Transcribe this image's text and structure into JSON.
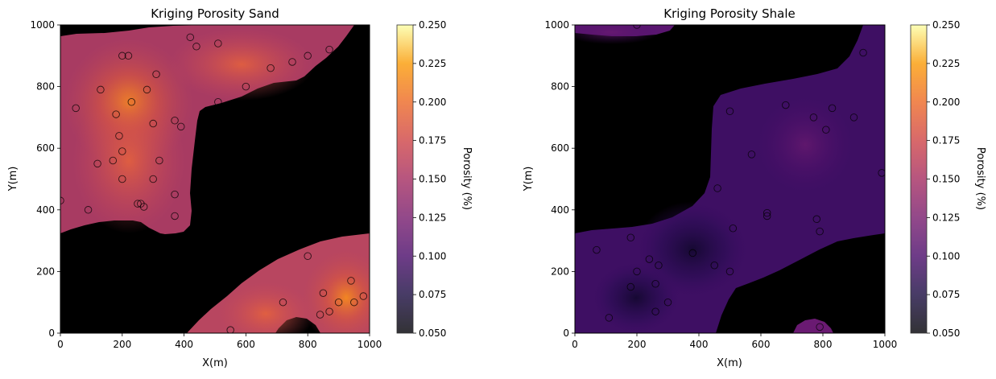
{
  "chart_data": [
    {
      "type": "heatmap",
      "title": "Kriging Porosity Sand",
      "xlabel": "X(m)",
      "ylabel": "Y(m)",
      "xlim": [
        0,
        1000
      ],
      "ylim": [
        0,
        1000
      ],
      "xticks": [
        "0",
        "200",
        "400",
        "600",
        "800",
        "1000"
      ],
      "yticks": [
        "0",
        "200",
        "400",
        "600",
        "800",
        "1000"
      ],
      "colorbar": {
        "label": "Porosity (%)",
        "range": [
          0.05,
          0.25
        ],
        "ticks": [
          "0.050",
          "0.075",
          "0.100",
          "0.125",
          "0.150",
          "0.175",
          "0.200",
          "0.225",
          "0.250"
        ],
        "colormap": "inferno"
      },
      "mask_color": "#000000",
      "points": [
        [
          0,
          430
        ],
        [
          50,
          730
        ],
        [
          90,
          400
        ],
        [
          120,
          550
        ],
        [
          130,
          790
        ],
        [
          170,
          560
        ],
        [
          180,
          710
        ],
        [
          190,
          640
        ],
        [
          200,
          590
        ],
        [
          200,
          500
        ],
        [
          200,
          900
        ],
        [
          220,
          900
        ],
        [
          230,
          750
        ],
        [
          250,
          420
        ],
        [
          260,
          420
        ],
        [
          270,
          410
        ],
        [
          280,
          790
        ],
        [
          300,
          680
        ],
        [
          300,
          500
        ],
        [
          310,
          840
        ],
        [
          320,
          560
        ],
        [
          370,
          690
        ],
        [
          370,
          450
        ],
        [
          370,
          380
        ],
        [
          390,
          670
        ],
        [
          420,
          960
        ],
        [
          440,
          930
        ],
        [
          510,
          940
        ],
        [
          510,
          750
        ],
        [
          600,
          800
        ],
        [
          680,
          860
        ],
        [
          750,
          880
        ],
        [
          800,
          900
        ],
        [
          870,
          920
        ],
        [
          720,
          100
        ],
        [
          800,
          250
        ],
        [
          840,
          60
        ],
        [
          850,
          130
        ],
        [
          870,
          70
        ],
        [
          900,
          100
        ],
        [
          940,
          170
        ],
        [
          950,
          100
        ],
        [
          980,
          120
        ],
        [
          550,
          10
        ]
      ]
    },
    {
      "type": "heatmap",
      "title": "Kriging Porosity Shale",
      "xlabel": "X(m)",
      "ylabel": "Y(m)",
      "xlim": [
        0,
        1000
      ],
      "ylim": [
        0,
        1000
      ],
      "xticks": [
        "0",
        "200",
        "400",
        "600",
        "800",
        "1000"
      ],
      "yticks": [
        "0",
        "200",
        "400",
        "600",
        "800",
        "1000"
      ],
      "colorbar": {
        "label": "Porosity (%)",
        "range": [
          0.05,
          0.25
        ],
        "ticks": [
          "0.050",
          "0.075",
          "0.100",
          "0.125",
          "0.150",
          "0.175",
          "0.200",
          "0.225",
          "0.250"
        ],
        "colormap": "inferno"
      },
      "mask_color": "#000000",
      "points": [
        [
          200,
          1000
        ],
        [
          930,
          910
        ],
        [
          990,
          520
        ],
        [
          500,
          720
        ],
        [
          680,
          740
        ],
        [
          770,
          700
        ],
        [
          830,
          730
        ],
        [
          900,
          700
        ],
        [
          810,
          660
        ],
        [
          570,
          580
        ],
        [
          460,
          470
        ],
        [
          620,
          390
        ],
        [
          620,
          380
        ],
        [
          780,
          370
        ],
        [
          790,
          330
        ],
        [
          510,
          340
        ],
        [
          180,
          310
        ],
        [
          70,
          270
        ],
        [
          380,
          260
        ],
        [
          240,
          240
        ],
        [
          270,
          220
        ],
        [
          450,
          220
        ],
        [
          200,
          200
        ],
        [
          500,
          200
        ],
        [
          180,
          150
        ],
        [
          260,
          160
        ],
        [
          300,
          100
        ],
        [
          260,
          70
        ],
        [
          110,
          50
        ],
        [
          790,
          20
        ]
      ]
    }
  ]
}
